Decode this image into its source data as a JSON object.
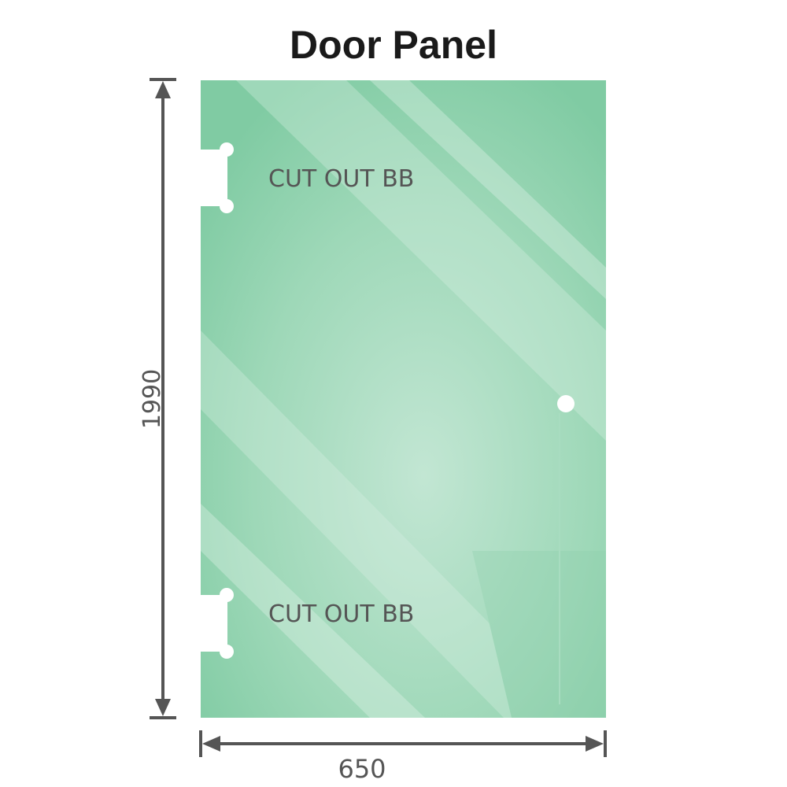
{
  "title": "Door Panel",
  "dimensions": {
    "height": "1990",
    "width": "650"
  },
  "cutouts": [
    {
      "label": "CUT OUT BB"
    },
    {
      "label": "CUT OUT BB"
    }
  ],
  "colors": {
    "glass": "#7fcba3",
    "glass_light": "#bfe5d0",
    "dimension_line": "#555555"
  }
}
